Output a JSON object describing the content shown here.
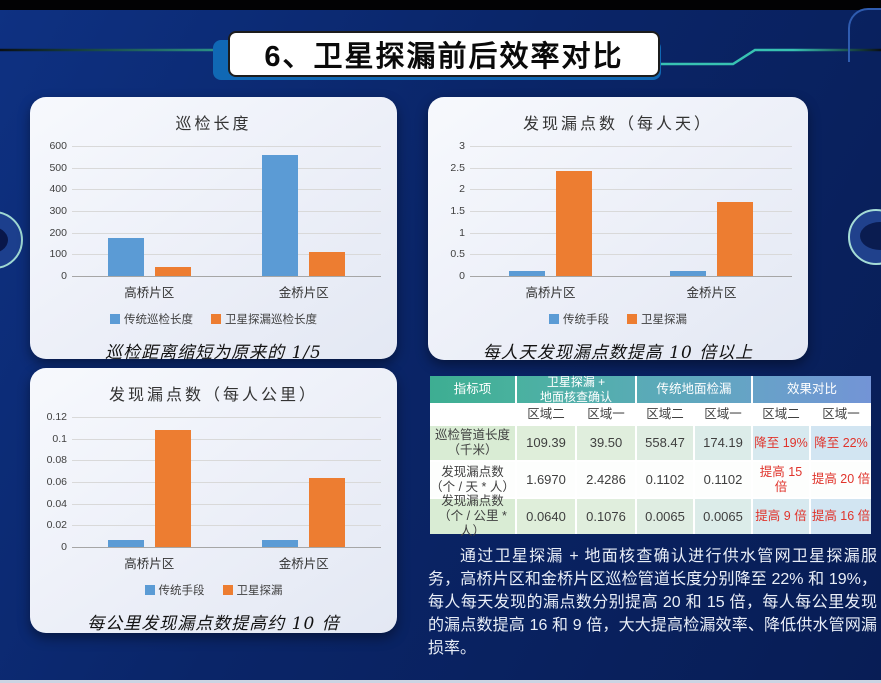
{
  "slide_title": "6、卫星探漏前后效率对比",
  "chart_data": [
    {
      "type": "bar",
      "title": "巡检长度",
      "categories": [
        "高桥片区",
        "金桥片区"
      ],
      "series": [
        {
          "name": "传统巡检长度",
          "color": "#5b9bd5",
          "values": [
            174.19,
            558.47
          ]
        },
        {
          "name": "卫星探漏巡检长度",
          "color": "#ed7d31",
          "values": [
            39.5,
            109.39
          ]
        }
      ],
      "ylim": [
        0,
        600
      ],
      "yticks": [
        0,
        100,
        200,
        300,
        400,
        500,
        600
      ],
      "grid": true,
      "legend_position": "bottom",
      "caption": "巡检距离缩短为原来的 1/5"
    },
    {
      "type": "bar",
      "title": "发现漏点数（每人天）",
      "categories": [
        "高桥片区",
        "金桥片区"
      ],
      "series": [
        {
          "name": "传统手段",
          "color": "#5b9bd5",
          "values": [
            0.1102,
            0.1102
          ]
        },
        {
          "name": "卫星探漏",
          "color": "#ed7d31",
          "values": [
            2.4286,
            1.697
          ]
        }
      ],
      "ylim": [
        0,
        3
      ],
      "yticks": [
        0,
        0.5,
        1,
        1.5,
        2,
        2.5,
        3
      ],
      "grid": true,
      "legend_position": "bottom",
      "caption": "每人天发现漏点数提高 10 倍以上"
    },
    {
      "type": "bar",
      "title": "发现漏点数（每人公里）",
      "categories": [
        "高桥片区",
        "金桥片区"
      ],
      "series": [
        {
          "name": "传统手段",
          "color": "#5b9bd5",
          "values": [
            0.0065,
            0.0065
          ]
        },
        {
          "name": "卫星探漏",
          "color": "#ed7d31",
          "values": [
            0.1076,
            0.064
          ]
        }
      ],
      "ylim": [
        0,
        0.12
      ],
      "yticks": [
        0,
        0.02,
        0.04,
        0.06,
        0.08,
        0.1,
        0.12
      ],
      "grid": true,
      "legend_position": "bottom",
      "caption": "每公里发现漏点数提高约 10 倍"
    }
  ],
  "table": {
    "header": {
      "indicator": "指标项",
      "group1_line1": "卫星探漏 +",
      "group1_line2": "地面核查确认",
      "group2": "传统地面检漏",
      "group3": "效果对比",
      "subheaders": [
        "区域二",
        "区域一",
        "区域二",
        "区域一",
        "区域二",
        "区域一"
      ]
    },
    "rows": [
      {
        "label_line1": "巡检管道长度",
        "label_line2": "（千米）",
        "values": [
          "109.39",
          "39.50",
          "558.47",
          "174.19"
        ],
        "effects": [
          "降至 19%",
          "降至 22%"
        ]
      },
      {
        "label_line1": "发现漏点数",
        "label_line2": "（个 / 天 * 人）",
        "values": [
          "1.6970",
          "2.4286",
          "0.1102",
          "0.1102"
        ],
        "effects": [
          "提高 15 倍",
          "提高 20 倍"
        ]
      },
      {
        "label_line1": "发现漏点数",
        "label_line2": "（个 / 公里 * 人）",
        "values": [
          "0.0640",
          "0.1076",
          "0.0065",
          "0.0065"
        ],
        "effects": [
          "提高 9 倍",
          "提高 16 倍"
        ]
      }
    ]
  },
  "paragraph": "通过卫星探漏 + 地面核查确认进行供水管网卫星探漏服务，高桥片区和金桥片区巡检管道长度分别降至 22% 和 19%，每人每天发现的漏点数分别提高 20 和 15 倍，每人每公里发现的漏点数提高 16 和 9 倍，大大提高检漏效率、降低供水管网漏损率。",
  "colors": {
    "bar_blue": "#5b9bd5",
    "bar_orange": "#ed7d31",
    "effect_red": "#e0342c",
    "header_teal": "#3dae92",
    "header_steel_blue": "#7394d6",
    "row_tint_green": "#d9ecd4",
    "row_tint_blue": "#d2e5f2"
  }
}
